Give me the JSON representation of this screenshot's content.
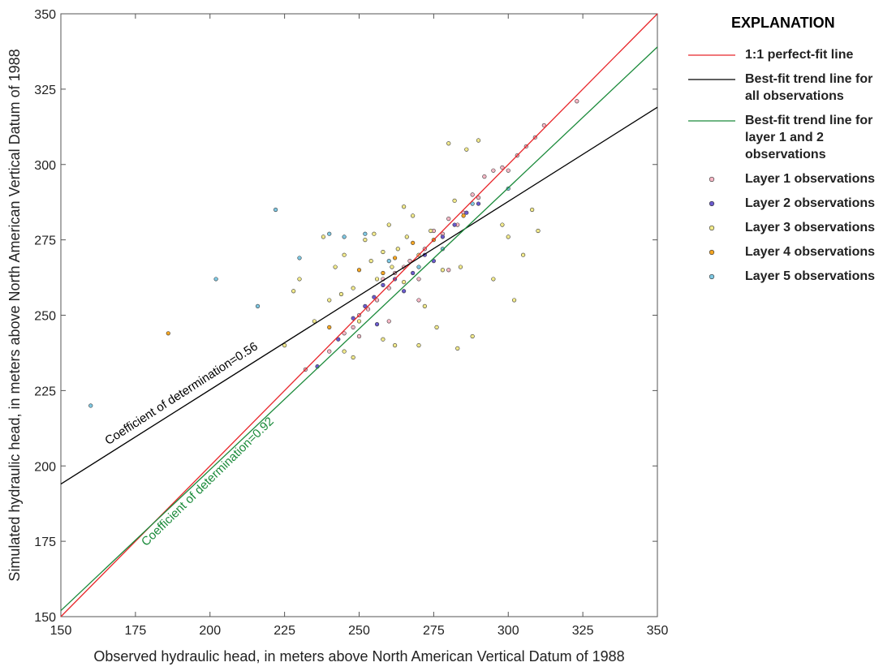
{
  "chart_data": {
    "type": "scatter",
    "x_label": "Observed hydraulic head, in meters above North American Vertical Datum of 1988",
    "y_label": "Simulated hydraulic head, in meters above North American Vertical Datum of 1988",
    "xlim": [
      150,
      350
    ],
    "ylim": [
      150,
      350
    ],
    "xticks": [
      150,
      175,
      200,
      225,
      250,
      275,
      300,
      325,
      350
    ],
    "yticks": [
      150,
      175,
      200,
      225,
      250,
      275,
      300,
      325,
      350
    ],
    "legend_title": "EXPLANATION",
    "annotations": [
      "Coefficient of determination=0.56",
      "Coefficient of determination=0.92"
    ],
    "series": [
      {
        "name": "1:1 perfect-fit line",
        "type": "line",
        "color": "#e8262a",
        "x": [
          150,
          350
        ],
        "values": [
          150,
          350
        ]
      },
      {
        "name": "Best-fit trend line for all observations",
        "type": "line",
        "color": "#000000",
        "x": [
          150,
          350
        ],
        "values": [
          194,
          319
        ]
      },
      {
        "name": "Best-fit trend line for layer 1 and 2 observations",
        "type": "line",
        "color": "#1a8a3a",
        "x": [
          150,
          350
        ],
        "values": [
          152,
          339
        ]
      },
      {
        "name": "Layer 1 observations",
        "type": "scatter",
        "color": "#f7b8c6",
        "x": [
          232,
          240,
          245,
          248,
          250,
          253,
          256,
          258,
          260,
          262,
          265,
          267,
          270,
          272,
          275,
          278,
          280,
          283,
          285,
          288,
          290,
          292,
          295,
          298,
          300,
          303,
          306,
          309,
          312,
          323,
          270,
          280,
          260,
          250
        ],
        "values": [
          232,
          238,
          244,
          246,
          243,
          252,
          255,
          262,
          259,
          264,
          266,
          268,
          262,
          272,
          278,
          277,
          282,
          280,
          284,
          290,
          289,
          296,
          298,
          299,
          298,
          303,
          306,
          309,
          313,
          321,
          255,
          265,
          248,
          250
        ]
      },
      {
        "name": "Layer 2 observations",
        "type": "scatter",
        "color": "#6a5acd",
        "x": [
          236,
          243,
          248,
          252,
          255,
          258,
          262,
          265,
          268,
          272,
          275,
          278,
          282,
          286,
          290,
          256
        ],
        "values": [
          233,
          242,
          249,
          253,
          256,
          260,
          262,
          258,
          264,
          270,
          268,
          276,
          280,
          284,
          287,
          247
        ]
      },
      {
        "name": "Layer 3 observations",
        "type": "scatter",
        "color": "#f2ea8c",
        "x": [
          225,
          230,
          238,
          240,
          242,
          245,
          245,
          248,
          250,
          252,
          254,
          255,
          256,
          258,
          260,
          261,
          263,
          265,
          266,
          268,
          270,
          272,
          274,
          276,
          278,
          280,
          282,
          284,
          286,
          288,
          290,
          295,
          298,
          300,
          302,
          305,
          308,
          310,
          235,
          228,
          262,
          270,
          283,
          265,
          258,
          248,
          244
        ],
        "values": [
          240,
          262,
          276,
          255,
          266,
          270,
          238,
          259,
          248,
          275,
          268,
          277,
          262,
          271,
          280,
          266,
          272,
          261,
          276,
          283,
          270,
          253,
          278,
          246,
          265,
          307,
          288,
          266,
          305,
          243,
          308,
          262,
          280,
          276,
          255,
          270,
          285,
          278,
          248,
          258,
          240,
          240,
          239,
          286,
          242,
          236,
          257
        ]
      },
      {
        "name": "Layer 4 observations",
        "type": "scatter",
        "color": "#f5a623",
        "x": [
          186,
          250,
          262,
          268,
          275,
          285,
          258,
          240
        ],
        "values": [
          244,
          265,
          269,
          274,
          275,
          283,
          264,
          246
        ]
      },
      {
        "name": "Layer 5 observations",
        "type": "scatter",
        "color": "#7ec8e3",
        "x": [
          160,
          202,
          216,
          222,
          230,
          252,
          245,
          260,
          270,
          278,
          288,
          300,
          240
        ],
        "values": [
          220,
          262,
          253,
          285,
          269,
          277,
          276,
          268,
          266,
          272,
          287,
          292,
          277
        ]
      }
    ]
  }
}
